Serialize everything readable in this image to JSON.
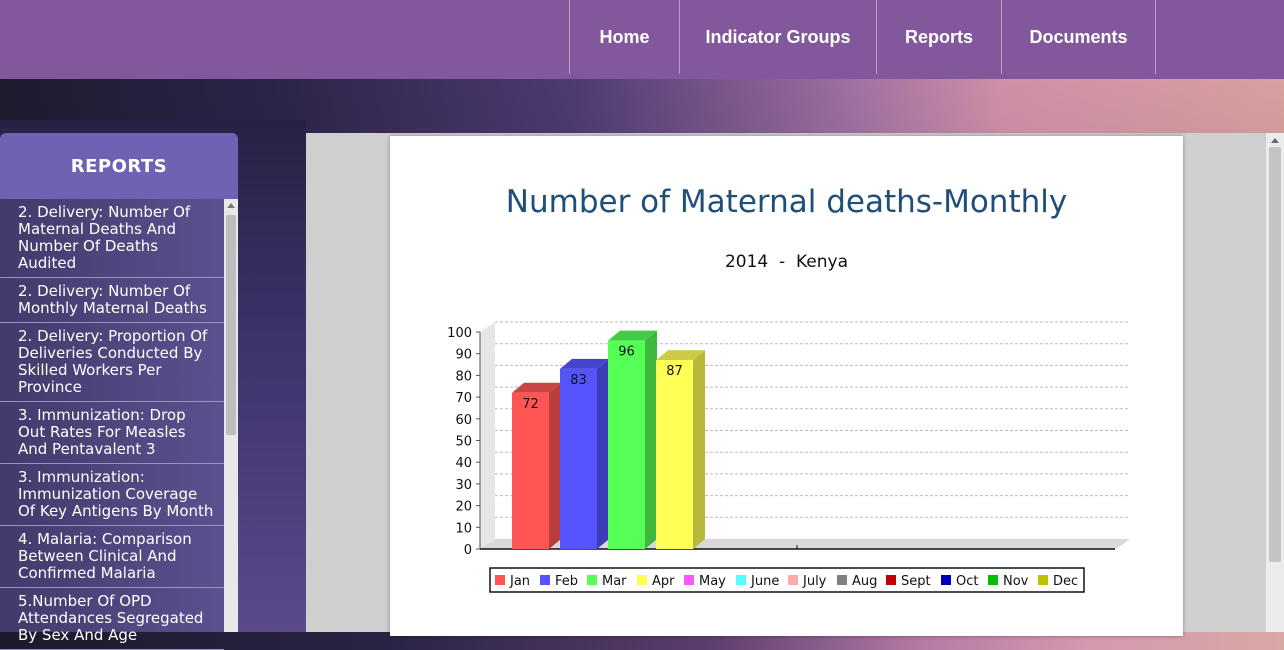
{
  "nav": {
    "items": [
      "Home",
      "Indicator Groups",
      "Reports",
      "Documents"
    ]
  },
  "sidebar": {
    "title": "REPORTS",
    "items": [
      "2. Delivery: Number Of Maternal Deaths And Number Of Deaths Audited",
      "2. Delivery: Number Of Monthly Maternal Deaths",
      "2. Delivery: Proportion Of Deliveries Conducted By Skilled Workers Per Province",
      "3. Immunization: Drop Out Rates For Measles And Pentavalent 3",
      "3. Immunization: Immunization Coverage Of Key Antigens By Month",
      "4. Malaria: Comparison Between Clinical And Confirmed Malaria",
      "5.Number Of OPD Attendances Segregated By Sex And Age"
    ]
  },
  "chart": {
    "title": "Number of Maternal deaths-Monthly",
    "subtitle": "2014  -  Kenya"
  },
  "chart_data": {
    "type": "bar",
    "title": "Number of Maternal deaths-Monthly",
    "subtitle": "2014  -  Kenya",
    "categories": [
      "Jan",
      "Feb",
      "Mar",
      "Apr",
      "May",
      "June",
      "July",
      "Aug",
      "Sept",
      "Oct",
      "Nov",
      "Dec"
    ],
    "series": [
      {
        "name": "Jan",
        "value": 72,
        "color": "#ff5555"
      },
      {
        "name": "Feb",
        "value": 83,
        "color": "#5555ff"
      },
      {
        "name": "Mar",
        "value": 96,
        "color": "#55ff55"
      },
      {
        "name": "Apr",
        "value": 87,
        "color": "#ffff55"
      },
      {
        "name": "May",
        "value": null,
        "color": "#ff55ff"
      },
      {
        "name": "June",
        "value": null,
        "color": "#55ffff"
      },
      {
        "name": "July",
        "value": null,
        "color": "#ffaaaa"
      },
      {
        "name": "Aug",
        "value": null,
        "color": "#808080"
      },
      {
        "name": "Sept",
        "value": null,
        "color": "#c00000"
      },
      {
        "name": "Oct",
        "value": null,
        "color": "#0000c0"
      },
      {
        "name": "Nov",
        "value": null,
        "color": "#00c000"
      },
      {
        "name": "Dec",
        "value": null,
        "color": "#c0c000"
      }
    ],
    "yticks": [
      "0",
      "10",
      "20",
      "30",
      "40",
      "50",
      "60",
      "70",
      "80",
      "90",
      "100"
    ],
    "ylim": [
      0,
      100
    ],
    "grid": true,
    "legend": "bottom",
    "style": "3d"
  }
}
